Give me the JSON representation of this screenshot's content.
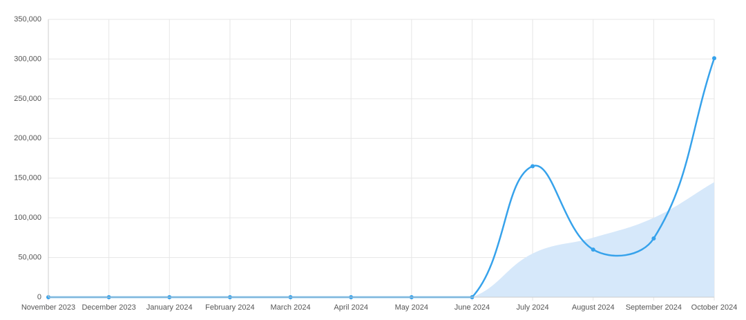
{
  "chart_data": {
    "type": "line",
    "categories": [
      "November 2023",
      "December 2023",
      "January 2024",
      "February 2024",
      "March 2024",
      "April 2024",
      "May 2024",
      "June 2024",
      "July 2024",
      "August 2024",
      "September 2024",
      "October 2024"
    ],
    "series": [
      {
        "type": "area",
        "color": "#d6e8fa",
        "values": [
          0,
          0,
          0,
          0,
          0,
          0,
          0,
          0,
          55000,
          75000,
          100000,
          145000
        ]
      },
      {
        "type": "line",
        "color": "#36a2eb",
        "values": [
          0,
          0,
          0,
          0,
          0,
          0,
          0,
          0,
          165000,
          60000,
          74000,
          301000
        ]
      }
    ],
    "ylim": [
      0,
      350000
    ],
    "yticks": [
      0,
      {
        "value": 50000,
        "label": "50,000"
      },
      {
        "value": 100000,
        "label": "100,000"
      },
      {
        "value": 150000,
        "label": "150,000"
      },
      {
        "value": 200000,
        "label": "200,000"
      },
      {
        "value": 250000,
        "label": "250,000"
      },
      {
        "value": 300000,
        "label": "300,000"
      },
      {
        "value": 350000,
        "label": "350,000"
      }
    ],
    "grid": true
  }
}
